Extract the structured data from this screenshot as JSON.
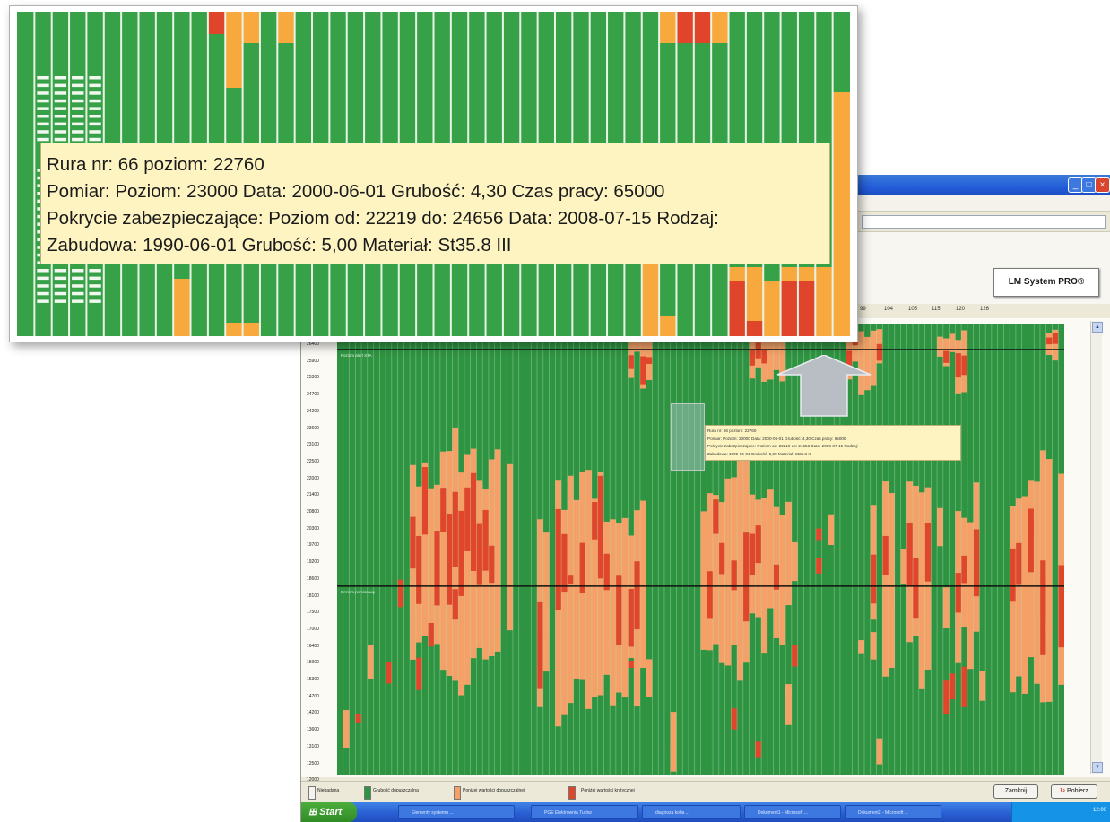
{
  "app": {
    "title_buttons": [
      "minimize-icon",
      "maximize-icon",
      "close-icon"
    ],
    "logo_label": "LM System PRO®"
  },
  "x_axis": {
    "visible_ticks": [
      "99",
      "104",
      "105",
      "115",
      "120",
      "126"
    ]
  },
  "y_axis": {
    "ticks": [
      "26400",
      "25900",
      "25300",
      "24700",
      "24200",
      "23600",
      "23100",
      "22500",
      "22000",
      "21400",
      "20800",
      "20300",
      "19700",
      "19200",
      "18600",
      "18100",
      "17500",
      "17000",
      "16400",
      "15900",
      "15300",
      "14700",
      "14200",
      "13600",
      "13100",
      "12500",
      "12000"
    ]
  },
  "chart": {
    "level_lines": [
      {
        "label": "Poziom alert STA",
        "y": 25750
      },
      {
        "label": "Poziom pomiarowy",
        "y": 18000
      }
    ],
    "tube_count": 120,
    "colors": {
      "green": "#2f9442",
      "orange": "#f4a066",
      "red": "#e0462a",
      "stripe": "#c7e7c8",
      "zoom_green": "#37a148",
      "zoom_orange": "#f8a93e",
      "zoom_red": "#e0452c",
      "zoom_white": "#f2f8f0"
    }
  },
  "tooltip": {
    "line1": "Rura nr: 66 poziom: 22760",
    "line2": "Pomiar:    Poziom: 23000 Data: 2000-06-01 Grubość: 4,30 Czas pracy: 65000",
    "line3": "Pokrycie zabezpieczające: Poziom od: 22219 do: 24656 Data: 2008-07-15 Rodzaj:",
    "line4": "Zabudowa: 1990-06-01 Grubość: 5,00 Materiał: St35.8 III"
  },
  "mini_tooltip": {
    "line1": "Rura nr: 66 poziom: 22760",
    "line2": "Pomiar:    Poziom: 23000 Data: 2000-06-01 Grubość: 4,30 Czas pracy: 65000",
    "line3": "Pokrycie zabezpieczające: Poziom od: 22219 do: 24656 Data: 2008-07-15 Rodzaj:",
    "line4": "Zabudowa: 1990-06-01 Grubość: 5,00 Materiał: St35.8 III"
  },
  "legend": {
    "items": [
      {
        "label": "Niebadana",
        "color": "#f4f3ee"
      },
      {
        "label": "Grubość dopuszczalna",
        "color": "#2f9442"
      },
      {
        "label": "Poniżej wartości dopuszczalnej",
        "color": "#f4a066"
      },
      {
        "label": "Poniżej wartości krytycznej",
        "color": "#e0462a"
      }
    ],
    "reject_button": "Zamknij",
    "refresh_button": "Pobierz"
  },
  "taskbar": {
    "start_label": "Start",
    "items": [
      "Elementy systemu ...",
      "PGE Elektrownia Turów",
      "diagnoza kotła ...",
      "Dokument1 - Microsoft ...",
      "Dokument2 - Microsoft ..."
    ],
    "clock": "12:00"
  }
}
